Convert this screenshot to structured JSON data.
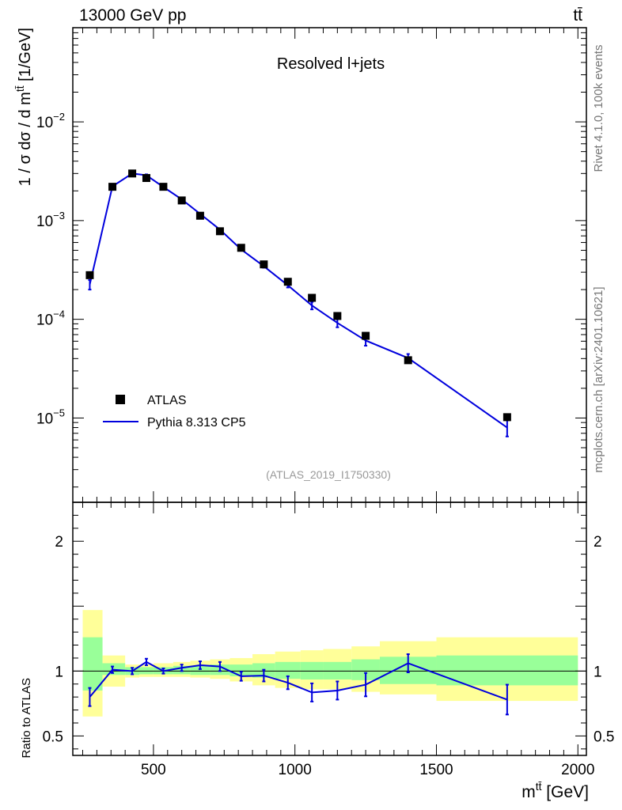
{
  "header": {
    "left_label": "13000 GeV pp",
    "right_label": "tt̄"
  },
  "side_labels": {
    "rivet": "Rivet 4.1.0,  100k events",
    "mcplots": "mcplots.cern.ch [arXiv:2401.10621]"
  },
  "chart_data": [
    {
      "type": "line",
      "panel": "main",
      "title": "Resolved l+jets",
      "watermark": "(ATLAS_2019_I1750330)",
      "ylabel": "1 / σ dσ / d m^{tt̄} [1/GeV]",
      "xlabel": "m^{tt̄} [GeV]",
      "yscale": "log",
      "xlim": [
        215,
        2030
      ],
      "ylim": [
        1.4e-06,
        0.09
      ],
      "y_tick_labels": [
        "10^-5",
        "10^-4",
        "10^-3",
        "10^-2"
      ],
      "legend": {
        "position": "bottom-left",
        "entries": [
          "ATLAS",
          "Pythia 8.313 CP5"
        ]
      },
      "series": [
        {
          "name": "ATLAS",
          "style": "markers",
          "color": "#000000",
          "x": [
            275,
            355,
            425,
            475,
            535,
            600,
            665,
            735,
            810,
            890,
            975,
            1060,
            1150,
            1250,
            1400,
            1750
          ],
          "y": [
            0.00028,
            0.0022,
            0.003,
            0.0027,
            0.0022,
            0.0016,
            0.00112,
            0.00078,
            0.00053,
            0.00036,
            0.00024,
            0.000165,
            0.000108,
            6.8e-05,
            3.85e-05,
            1.02e-05
          ]
        },
        {
          "name": "Pythia 8.313 CP5",
          "style": "line",
          "color": "#0000dd",
          "x": [
            275,
            355,
            425,
            475,
            535,
            600,
            665,
            735,
            810,
            890,
            975,
            1060,
            1150,
            1250,
            1400,
            1750
          ],
          "y": [
            0.000225,
            0.00222,
            0.003,
            0.00288,
            0.00219,
            0.00164,
            0.00117,
            0.00081,
            0.00051,
            0.000345,
            0.000221,
            0.000138,
            9.2e-05,
            6.1e-05,
            4.05e-05,
            8e-06
          ],
          "err_lo": [
            2.5e-05,
            6e-05,
            7e-05,
            6e-05,
            5e-05,
            4e-05,
            3e-05,
            2e-05,
            1.5e-05,
            1.2e-05,
            1.1e-05,
            1.2e-05,
            9e-06,
            7e-06,
            4e-06,
            1.5e-06
          ],
          "err_hi": [
            2.5e-05,
            6e-05,
            7e-05,
            6e-05,
            5e-05,
            4e-05,
            3e-05,
            2e-05,
            1.5e-05,
            1.2e-05,
            1.1e-05,
            1.2e-05,
            9e-06,
            7e-06,
            4e-06,
            1.5e-06
          ]
        }
      ]
    },
    {
      "type": "line",
      "panel": "ratio",
      "ylabel": "Ratio to ATLAS",
      "xlabel": "m^{tt̄} [GeV]",
      "xlim": [
        215,
        2030
      ],
      "ylim": [
        0.35,
        2.3
      ],
      "x_ticks": [
        500,
        1000,
        1500,
        2000
      ],
      "y_ticks": [
        0.5,
        1,
        2
      ],
      "reference_line": 1,
      "bands": {
        "bin_edges": [
          250,
          320,
          400,
          450,
          500,
          570,
          630,
          700,
          770,
          850,
          930,
          1020,
          1100,
          1200,
          1300,
          1500,
          2000
        ],
        "inner_lo": [
          0.85,
          0.97,
          0.97,
          0.975,
          0.975,
          0.975,
          0.97,
          0.97,
          0.96,
          0.95,
          0.94,
          0.935,
          0.935,
          0.93,
          0.9,
          0.89
        ],
        "inner_hi": [
          1.26,
          1.06,
          1.03,
          1.03,
          1.03,
          1.04,
          1.04,
          1.05,
          1.05,
          1.06,
          1.07,
          1.07,
          1.07,
          1.09,
          1.11,
          1.12
        ],
        "outer_lo": [
          0.65,
          0.88,
          0.95,
          0.955,
          0.955,
          0.955,
          0.95,
          0.94,
          0.92,
          0.89,
          0.87,
          0.86,
          0.86,
          0.84,
          0.82,
          0.77
        ],
        "outer_hi": [
          1.47,
          1.12,
          1.05,
          1.05,
          1.06,
          1.07,
          1.08,
          1.09,
          1.1,
          1.13,
          1.15,
          1.16,
          1.17,
          1.19,
          1.23,
          1.26
        ],
        "inner_color": "#99ff99",
        "outer_color": "#ffff99"
      },
      "series": [
        {
          "name": "Pythia 8.313 CP5 / ATLAS",
          "color": "#0000dd",
          "x": [
            275,
            355,
            425,
            475,
            535,
            600,
            665,
            735,
            810,
            890,
            975,
            1060,
            1150,
            1250,
            1400,
            1750
          ],
          "y": [
            0.8,
            1.01,
            1.0,
            1.07,
            1.0,
            1.025,
            1.045,
            1.035,
            0.96,
            0.965,
            0.91,
            0.835,
            0.85,
            0.895,
            1.06,
            0.78
          ],
          "err": [
            0.07,
            0.025,
            0.025,
            0.025,
            0.02,
            0.025,
            0.03,
            0.035,
            0.035,
            0.045,
            0.05,
            0.07,
            0.07,
            0.09,
            0.07,
            0.115
          ]
        }
      ]
    }
  ]
}
